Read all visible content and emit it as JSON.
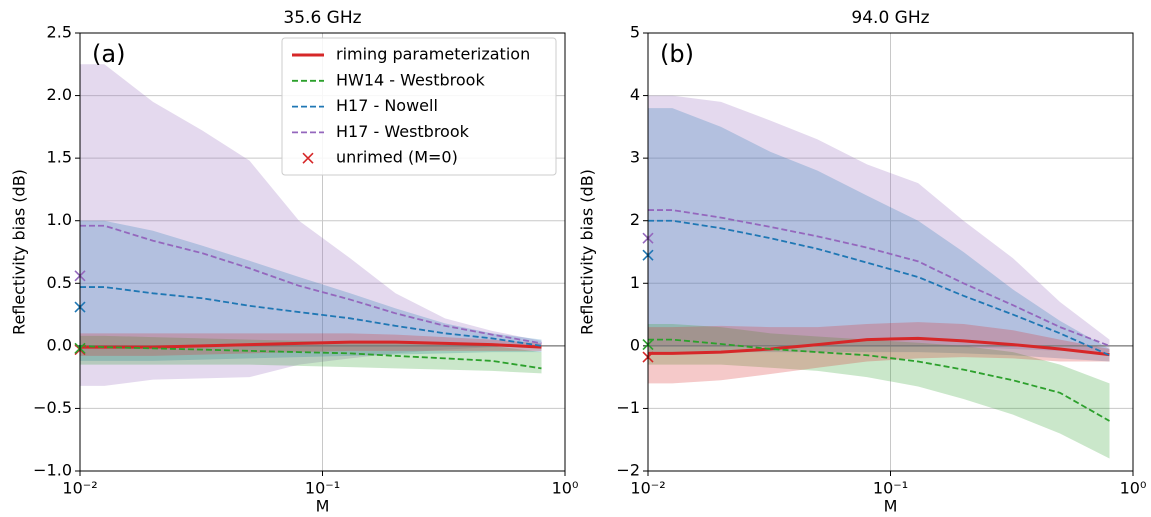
{
  "chart_data": [
    {
      "type": "line",
      "title": "35.6 GHz",
      "label": "(a)",
      "xlabel": "M",
      "ylabel": "Reflectivity bias (dB)",
      "xscale": "log",
      "xlim": [
        0.01,
        1
      ],
      "xticks": [
        {
          "value": 0.01,
          "label": "10⁻²"
        },
        {
          "value": 0.1,
          "label": "10⁻¹"
        },
        {
          "value": 1,
          "label": "10⁰"
        }
      ],
      "ylim": [
        -1.0,
        2.5
      ],
      "yticks": [
        {
          "value": -1.0,
          "label": "−1.0"
        },
        {
          "value": -0.5,
          "label": "−0.5"
        },
        {
          "value": 0.0,
          "label": "0.0"
        },
        0.5,
        {
          "value": 1.0,
          "label": "1.0"
        },
        1.5,
        {
          "value": 2.0,
          "label": "2.0"
        },
        2.5
      ],
      "grid": true,
      "legend": "upper right",
      "unrimed_name": "unrimed (M=0)",
      "unrimed_color": "#d62728",
      "x": [
        0.01,
        0.0126,
        0.02,
        0.032,
        0.05,
        0.08,
        0.13,
        0.2,
        0.32,
        0.5,
        0.8
      ],
      "series": [
        {
          "name": "riming parameterization",
          "color": "#d62728",
          "dash": false,
          "values": [
            -0.01,
            -0.01,
            -0.01,
            0,
            0.01,
            0.02,
            0.03,
            0.03,
            0.02,
            0.01,
            -0.01
          ],
          "lower": [
            -0.08,
            -0.08,
            -0.08,
            -0.07,
            -0.06,
            -0.05,
            -0.04,
            -0.04,
            -0.04,
            -0.04,
            -0.04
          ],
          "upper": [
            0.1,
            0.1,
            0.1,
            0.1,
            0.1,
            0.1,
            0.1,
            0.09,
            0.07,
            0.05,
            0.02
          ],
          "unrimed": -0.03
        },
        {
          "name": "HW14 - Westbrook",
          "color": "#2ca02c",
          "dash": true,
          "values": [
            0,
            -0.01,
            -0.02,
            -0.03,
            -0.04,
            -0.05,
            -0.06,
            -0.08,
            -0.1,
            -0.12,
            -0.18
          ],
          "lower": [
            -0.15,
            -0.15,
            -0.15,
            -0.15,
            -0.15,
            -0.16,
            -0.17,
            -0.18,
            -0.19,
            -0.2,
            -0.22
          ],
          "upper": [
            0.08,
            0.08,
            0.07,
            0.06,
            0.05,
            0.04,
            0.03,
            0.02,
            0.01,
            0,
            -0.05
          ],
          "unrimed": -0.02
        },
        {
          "name": "H17 - Nowell",
          "color": "#1f77b4",
          "dash": true,
          "values": [
            0.47,
            0.47,
            0.42,
            0.38,
            0.32,
            0.27,
            0.22,
            0.16,
            0.1,
            0.06,
            0.0
          ],
          "lower": [
            -0.12,
            -0.12,
            -0.12,
            -0.11,
            -0.1,
            -0.09,
            -0.08,
            -0.07,
            -0.06,
            -0.05,
            -0.05
          ],
          "upper": [
            1.0,
            1.0,
            0.92,
            0.8,
            0.68,
            0.55,
            0.42,
            0.3,
            0.18,
            0.1,
            0.05
          ],
          "unrimed": 0.31
        },
        {
          "name": "H17 - Westbrook",
          "color": "#9467bd",
          "dash": true,
          "values": [
            0.96,
            0.96,
            0.84,
            0.74,
            0.62,
            0.48,
            0.37,
            0.26,
            0.16,
            0.09,
            0.02
          ],
          "lower": [
            -0.32,
            -0.32,
            -0.27,
            -0.26,
            -0.25,
            -0.15,
            -0.1,
            -0.06,
            -0.03,
            -0.01,
            0
          ],
          "upper": [
            2.25,
            2.25,
            1.95,
            1.72,
            1.48,
            1.0,
            0.7,
            0.42,
            0.22,
            0.12,
            0.04
          ],
          "unrimed": 0.56
        }
      ]
    },
    {
      "type": "line",
      "title": "94.0 GHz",
      "label": "(b)",
      "xlabel": "M",
      "ylabel": "Reflectivity bias (dB)",
      "xscale": "log",
      "xlim": [
        0.01,
        1
      ],
      "xticks": [
        {
          "value": 0.01,
          "label": "10⁻²"
        },
        {
          "value": 0.1,
          "label": "10⁻¹"
        },
        {
          "value": 1,
          "label": "10⁰"
        }
      ],
      "ylim": [
        -2,
        5
      ],
      "yticks": [
        {
          "value": -2,
          "label": "−2"
        },
        {
          "value": -1,
          "label": "−1"
        },
        0,
        1,
        2,
        3,
        4,
        5
      ],
      "grid": true,
      "unrimed_color": "#d62728",
      "x": [
        0.01,
        0.0126,
        0.02,
        0.032,
        0.05,
        0.08,
        0.13,
        0.2,
        0.32,
        0.5,
        0.8
      ],
      "series": [
        {
          "color": "#d62728",
          "dash": false,
          "values": [
            -0.12,
            -0.12,
            -0.1,
            -0.05,
            0.02,
            0.1,
            0.12,
            0.08,
            0.02,
            -0.05,
            -0.14
          ],
          "lower": [
            -0.6,
            -0.6,
            -0.55,
            -0.45,
            -0.35,
            -0.25,
            -0.2,
            -0.18,
            -0.2,
            -0.25,
            -0.25
          ],
          "upper": [
            0.3,
            0.3,
            0.32,
            0.3,
            0.3,
            0.35,
            0.38,
            0.35,
            0.25,
            0.1,
            -0.05
          ],
          "unrimed": -0.18
        },
        {
          "color": "#2ca02c",
          "dash": true,
          "values": [
            0.1,
            0.1,
            0.03,
            -0.05,
            -0.1,
            -0.15,
            -0.25,
            -0.38,
            -0.55,
            -0.75,
            -1.2
          ],
          "lower": [
            -0.3,
            -0.3,
            -0.3,
            -0.35,
            -0.4,
            -0.5,
            -0.65,
            -0.85,
            -1.1,
            -1.4,
            -1.8
          ],
          "upper": [
            0.35,
            0.35,
            0.3,
            0.2,
            0.15,
            0.1,
            0.05,
            0,
            -0.1,
            -0.3,
            -0.6
          ],
          "unrimed": 0.02
        },
        {
          "color": "#1f77b4",
          "dash": true,
          "values": [
            2.0,
            2.0,
            1.88,
            1.72,
            1.55,
            1.33,
            1.1,
            0.8,
            0.5,
            0.2,
            -0.15
          ],
          "lower": [
            -0.1,
            -0.1,
            -0.1,
            -0.1,
            -0.1,
            -0.1,
            -0.1,
            -0.12,
            -0.15,
            -0.2,
            -0.25
          ],
          "upper": [
            3.8,
            3.8,
            3.5,
            3.1,
            2.8,
            2.4,
            2.0,
            1.5,
            0.9,
            0.4,
            -0.05
          ],
          "unrimed": 1.45
        },
        {
          "color": "#9467bd",
          "dash": true,
          "values": [
            2.17,
            2.17,
            2.05,
            1.9,
            1.75,
            1.57,
            1.35,
            1.0,
            0.65,
            0.3,
            0.0
          ],
          "lower": [
            0,
            0,
            0,
            0,
            0,
            0,
            0,
            -0.02,
            -0.05,
            -0.08,
            -0.1
          ],
          "upper": [
            4.0,
            4.0,
            3.9,
            3.6,
            3.3,
            2.9,
            2.6,
            2.0,
            1.4,
            0.7,
            0.1
          ],
          "unrimed": 1.72
        }
      ]
    }
  ]
}
